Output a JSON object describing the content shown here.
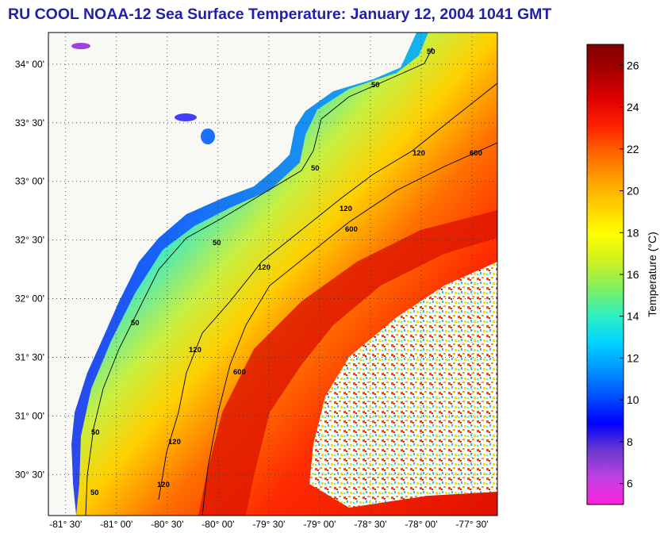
{
  "title": "RU COOL  NOAA-12  Sea Surface Temperature:  January 12, 2004 1041 GMT",
  "map": {
    "lat_labels": [
      "34° 00'",
      "33° 30'",
      "33° 00'",
      "32° 30'",
      "32° 00'",
      "31° 30'",
      "31° 00'",
      "30° 30'"
    ],
    "lat_values": [
      34.0,
      33.5,
      33.0,
      32.5,
      32.0,
      31.5,
      31.0,
      30.5
    ],
    "lon_labels": [
      "-81° 30'",
      "-81° 00'",
      "-80° 30'",
      "-80° 00'",
      "-79° 30'",
      "-79° 00'",
      "-78° 30'",
      "-78° 00'",
      "-77° 30'"
    ],
    "lon_values": [
      -81.5,
      -81.0,
      -80.5,
      -80.0,
      -79.5,
      -79.0,
      -78.5,
      -78.0,
      -77.5
    ],
    "lon_range": [
      -81.67,
      -77.25
    ],
    "lat_range": [
      30.15,
      34.27
    ],
    "contour_labels": [
      "50",
      "50",
      "50",
      "50",
      "50",
      "50",
      "50",
      "120",
      "120",
      "120",
      "120",
      "120",
      "120",
      "600",
      "600",
      "600"
    ]
  },
  "colorbar": {
    "label": "Temperature (°C)",
    "ticks": [
      26,
      24,
      22,
      20,
      18,
      16,
      14,
      12,
      10,
      8,
      6
    ],
    "min": 5,
    "max": 27,
    "colors": [
      "#ff22dd",
      "#c040e0",
      "#6a3ad0",
      "#0000ff",
      "#0050ff",
      "#0095ff",
      "#00d4ff",
      "#30f0c0",
      "#80f060",
      "#d0f020",
      "#ffff00",
      "#ffd000",
      "#ffa000",
      "#ff6400",
      "#ff2000",
      "#e00000",
      "#a80000",
      "#800000"
    ]
  }
}
